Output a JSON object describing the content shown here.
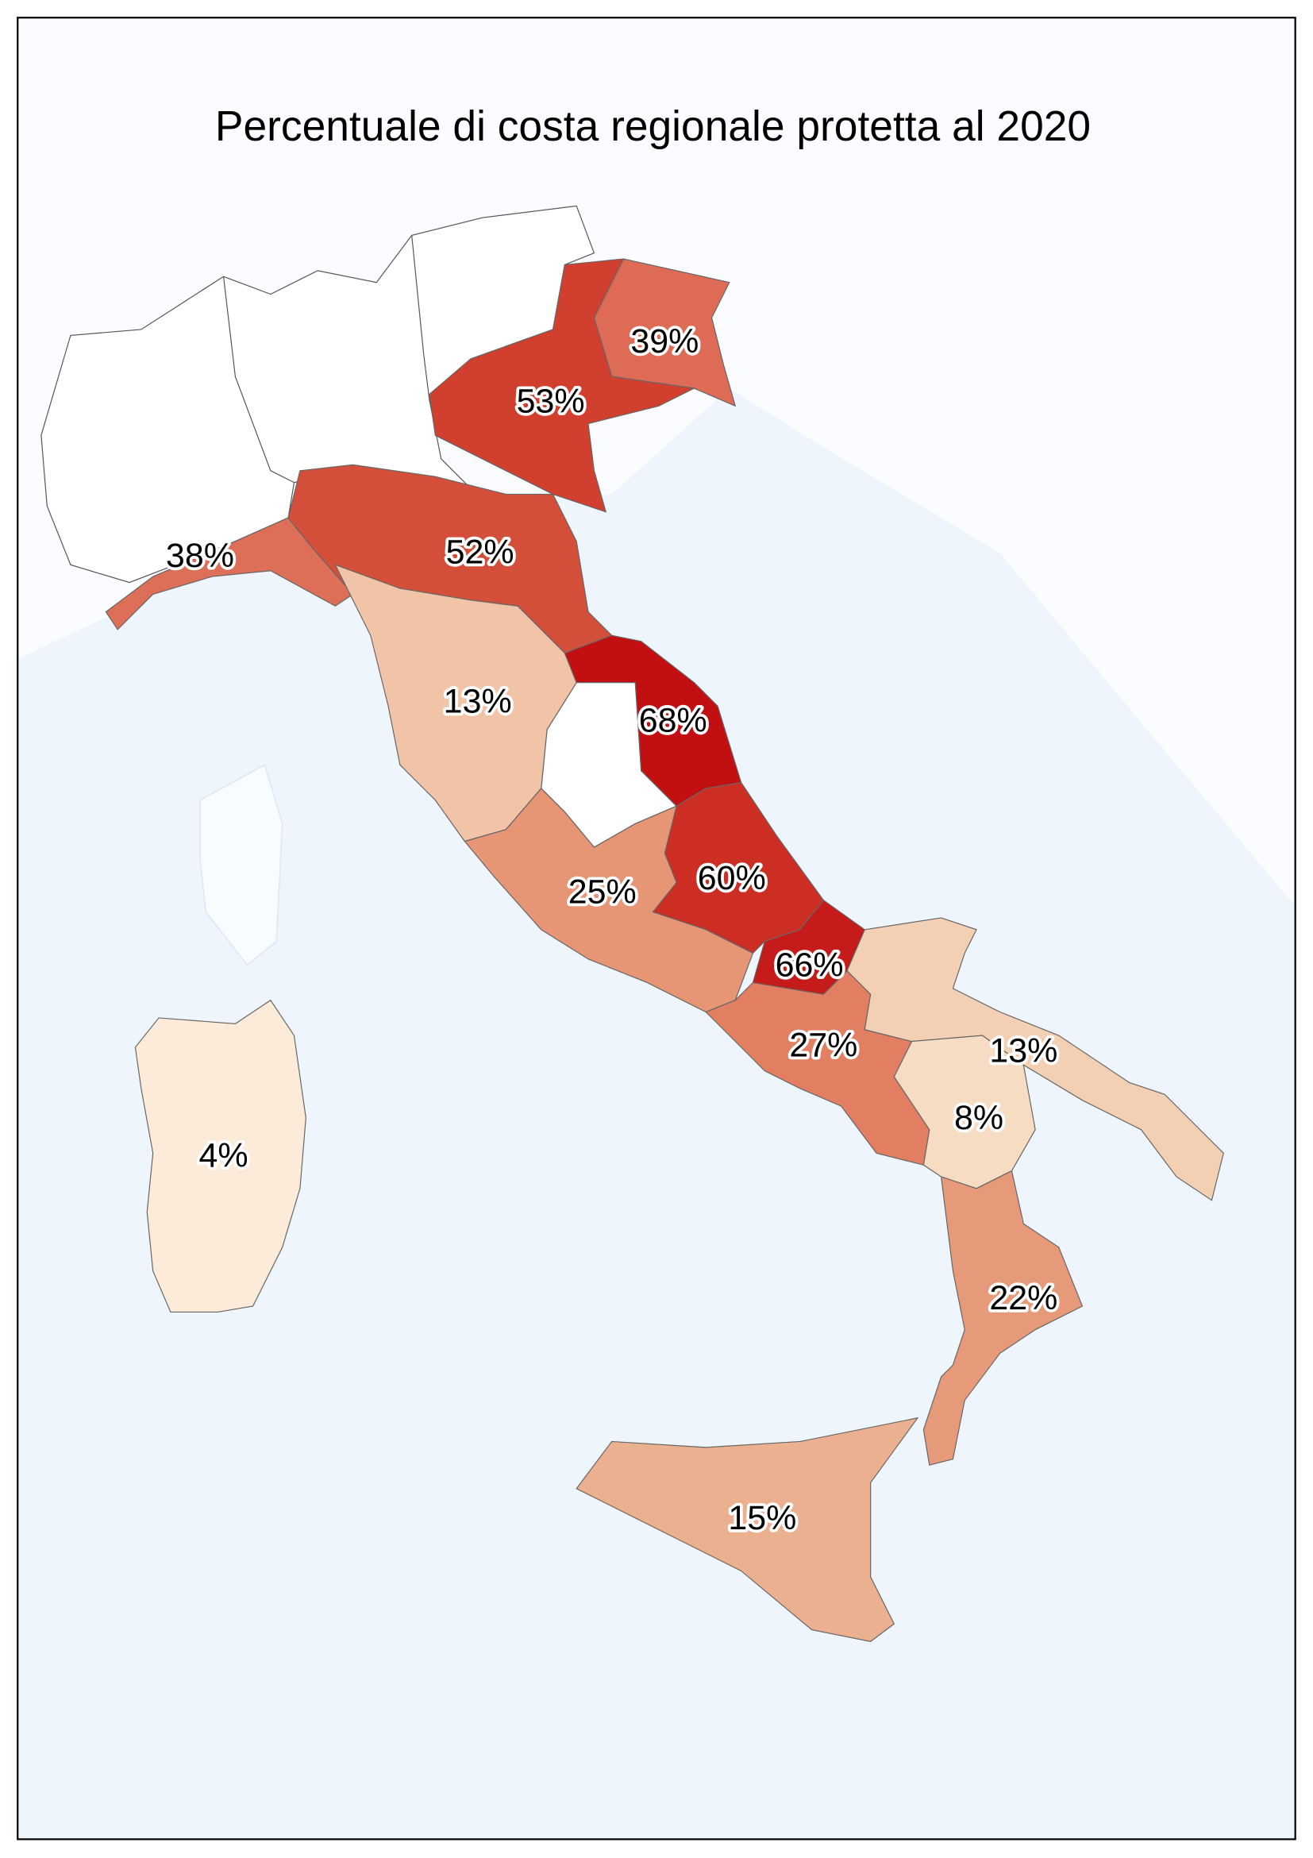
{
  "title": "Percentuale di costa regionale protetta al 2020",
  "regions": [
    {
      "value": 39,
      "label": "39%",
      "color": "#dd6b55"
    },
    {
      "value": 53,
      "label": "53%",
      "color": "#d1402f"
    },
    {
      "value": 38,
      "label": "38%",
      "color": "#dd6e57"
    },
    {
      "value": 52,
      "label": "52%",
      "color": "#d44f39"
    },
    {
      "value": 13,
      "label": "13%",
      "color": "#f1c4a8"
    },
    {
      "value": 68,
      "label": "68%",
      "color": "#c20f12"
    },
    {
      "value": 60,
      "label": "60%",
      "color": "#cc2e24"
    },
    {
      "value": 25,
      "label": "25%",
      "color": "#e69575"
    },
    {
      "value": 66,
      "label": "66%",
      "color": "#c51b1b"
    },
    {
      "value": 27,
      "label": "27%",
      "color": "#e27f62"
    },
    {
      "value": 13,
      "label": "13%",
      "color": "#f3cfb3"
    },
    {
      "value": 8,
      "label": "8%",
      "color": "#f7dcc4"
    },
    {
      "value": 22,
      "label": "22%",
      "color": "#e79a79"
    },
    {
      "value": 15,
      "label": "15%",
      "color": "#ebb08f"
    },
    {
      "value": 4,
      "label": "4%",
      "color": "#fdebd9"
    }
  ]
}
